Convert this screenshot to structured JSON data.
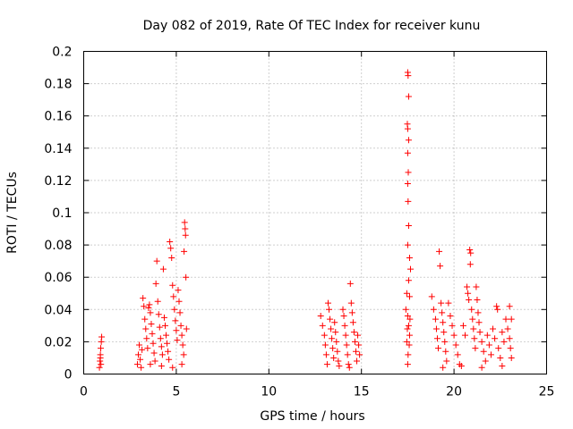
{
  "chart_data": {
    "type": "scatter",
    "title": "Day 082 of 2019, Rate Of TEC Index for receiver kunu",
    "xlabel": "GPS time / hours",
    "ylabel": "ROTI / TECUs",
    "xlim": [
      0,
      25
    ],
    "ylim": [
      0,
      0.2
    ],
    "xticks": [
      0,
      5,
      10,
      15,
      20,
      25
    ],
    "xtick_labels": [
      "0",
      "5",
      "10",
      "15",
      "20",
      "25"
    ],
    "yticks": [
      0,
      0.02,
      0.04,
      0.06,
      0.08,
      0.1,
      0.12,
      0.14,
      0.16,
      0.18,
      0.2
    ],
    "ytick_labels": [
      "0",
      "0.02",
      "0.04",
      "0.06",
      "0.08",
      "0.1",
      "0.12",
      "0.14",
      "0.16",
      "0.18",
      "0.2"
    ],
    "grid": true,
    "marker": "+",
    "series": [
      {
        "name": "ROTI",
        "color": "#ff0000",
        "points": [
          [
            0.85,
            0.004
          ],
          [
            0.88,
            0.008
          ],
          [
            0.9,
            0.012
          ],
          [
            0.92,
            0.016
          ],
          [
            0.95,
            0.02
          ],
          [
            0.97,
            0.023
          ],
          [
            0.9,
            0.01
          ],
          [
            0.93,
            0.006
          ],
          [
            2.9,
            0.006
          ],
          [
            2.95,
            0.012
          ],
          [
            3.0,
            0.018
          ],
          [
            3.05,
            0.009
          ],
          [
            3.15,
            0.015
          ],
          [
            3.2,
            0.047
          ],
          [
            3.25,
            0.042
          ],
          [
            3.3,
            0.034
          ],
          [
            3.35,
            0.028
          ],
          [
            3.4,
            0.022
          ],
          [
            3.45,
            0.016
          ],
          [
            3.5,
            0.041
          ],
          [
            3.55,
            0.043
          ],
          [
            3.6,
            0.038
          ],
          [
            3.65,
            0.031
          ],
          [
            3.7,
            0.025
          ],
          [
            3.75,
            0.019
          ],
          [
            3.8,
            0.013
          ],
          [
            3.85,
            0.008
          ],
          [
            3.9,
            0.056
          ],
          [
            3.95,
            0.07
          ],
          [
            4.0,
            0.045
          ],
          [
            4.05,
            0.037
          ],
          [
            4.1,
            0.029
          ],
          [
            4.15,
            0.022
          ],
          [
            4.2,
            0.017
          ],
          [
            4.25,
            0.012
          ],
          [
            4.3,
            0.065
          ],
          [
            4.35,
            0.035
          ],
          [
            4.4,
            0.03
          ],
          [
            4.45,
            0.024
          ],
          [
            4.5,
            0.019
          ],
          [
            4.55,
            0.014
          ],
          [
            4.6,
            0.009
          ],
          [
            4.65,
            0.082
          ],
          [
            4.7,
            0.078
          ],
          [
            4.75,
            0.072
          ],
          [
            4.8,
            0.055
          ],
          [
            4.85,
            0.048
          ],
          [
            4.9,
            0.04
          ],
          [
            4.95,
            0.033
          ],
          [
            5.0,
            0.027
          ],
          [
            5.05,
            0.021
          ],
          [
            5.1,
            0.052
          ],
          [
            5.15,
            0.045
          ],
          [
            5.2,
            0.038
          ],
          [
            5.25,
            0.03
          ],
          [
            5.3,
            0.024
          ],
          [
            5.35,
            0.018
          ],
          [
            5.4,
            0.012
          ],
          [
            5.45,
            0.094
          ],
          [
            5.48,
            0.09
          ],
          [
            5.5,
            0.086
          ],
          [
            5.42,
            0.076
          ],
          [
            5.52,
            0.06
          ],
          [
            5.55,
            0.028
          ],
          [
            3.1,
            0.004
          ],
          [
            3.6,
            0.006
          ],
          [
            4.2,
            0.005
          ],
          [
            4.8,
            0.004
          ],
          [
            5.3,
            0.006
          ],
          [
            12.8,
            0.036
          ],
          [
            12.9,
            0.03
          ],
          [
            13.0,
            0.024
          ],
          [
            13.05,
            0.018
          ],
          [
            13.1,
            0.012
          ],
          [
            13.15,
            0.006
          ],
          [
            13.2,
            0.044
          ],
          [
            13.25,
            0.04
          ],
          [
            13.3,
            0.034
          ],
          [
            13.35,
            0.028
          ],
          [
            13.4,
            0.022
          ],
          [
            13.45,
            0.016
          ],
          [
            13.5,
            0.01
          ],
          [
            13.55,
            0.032
          ],
          [
            13.6,
            0.026
          ],
          [
            13.65,
            0.02
          ],
          [
            13.7,
            0.014
          ],
          [
            13.75,
            0.008
          ],
          [
            14.0,
            0.04
          ],
          [
            14.05,
            0.036
          ],
          [
            14.1,
            0.03
          ],
          [
            14.15,
            0.024
          ],
          [
            14.2,
            0.018
          ],
          [
            14.25,
            0.012
          ],
          [
            14.3,
            0.006
          ],
          [
            14.4,
            0.056
          ],
          [
            14.45,
            0.044
          ],
          [
            14.5,
            0.038
          ],
          [
            14.55,
            0.032
          ],
          [
            14.6,
            0.026
          ],
          [
            14.65,
            0.02
          ],
          [
            14.7,
            0.014
          ],
          [
            14.75,
            0.008
          ],
          [
            14.8,
            0.024
          ],
          [
            14.85,
            0.018
          ],
          [
            14.9,
            0.012
          ],
          [
            13.8,
            0.005
          ],
          [
            14.35,
            0.004
          ],
          [
            17.4,
            0.04
          ],
          [
            17.45,
            0.05
          ],
          [
            17.5,
            0.187
          ],
          [
            17.52,
            0.185
          ],
          [
            17.55,
            0.172
          ],
          [
            17.48,
            0.155
          ],
          [
            17.5,
            0.152
          ],
          [
            17.55,
            0.145
          ],
          [
            17.5,
            0.137
          ],
          [
            17.53,
            0.125
          ],
          [
            17.5,
            0.118
          ],
          [
            17.52,
            0.107
          ],
          [
            17.55,
            0.092
          ],
          [
            17.5,
            0.08
          ],
          [
            17.6,
            0.072
          ],
          [
            17.65,
            0.065
          ],
          [
            17.55,
            0.058
          ],
          [
            17.6,
            0.048
          ],
          [
            17.5,
            0.036
          ],
          [
            17.55,
            0.03
          ],
          [
            17.6,
            0.024
          ],
          [
            17.58,
            0.018
          ],
          [
            17.52,
            0.012
          ],
          [
            17.5,
            0.006
          ],
          [
            17.45,
            0.02
          ],
          [
            17.62,
            0.034
          ],
          [
            17.48,
            0.028
          ],
          [
            18.8,
            0.048
          ],
          [
            18.9,
            0.04
          ],
          [
            19.0,
            0.034
          ],
          [
            19.05,
            0.028
          ],
          [
            19.1,
            0.022
          ],
          [
            19.15,
            0.016
          ],
          [
            19.2,
            0.076
          ],
          [
            19.25,
            0.067
          ],
          [
            19.3,
            0.044
          ],
          [
            19.35,
            0.038
          ],
          [
            19.4,
            0.032
          ],
          [
            19.45,
            0.026
          ],
          [
            19.5,
            0.02
          ],
          [
            19.55,
            0.014
          ],
          [
            19.6,
            0.008
          ],
          [
            19.7,
            0.044
          ],
          [
            19.8,
            0.036
          ],
          [
            19.9,
            0.03
          ],
          [
            20.0,
            0.024
          ],
          [
            20.1,
            0.018
          ],
          [
            20.2,
            0.012
          ],
          [
            20.3,
            0.006
          ],
          [
            20.5,
            0.03
          ],
          [
            20.6,
            0.024
          ],
          [
            20.7,
            0.054
          ],
          [
            20.75,
            0.05
          ],
          [
            20.8,
            0.046
          ],
          [
            20.85,
            0.077
          ],
          [
            20.9,
            0.075
          ],
          [
            20.88,
            0.068
          ],
          [
            20.95,
            0.04
          ],
          [
            21.0,
            0.034
          ],
          [
            21.05,
            0.028
          ],
          [
            21.1,
            0.022
          ],
          [
            21.15,
            0.016
          ],
          [
            21.2,
            0.054
          ],
          [
            21.25,
            0.046
          ],
          [
            21.3,
            0.038
          ],
          [
            21.35,
            0.032
          ],
          [
            21.4,
            0.026
          ],
          [
            21.5,
            0.02
          ],
          [
            21.6,
            0.014
          ],
          [
            21.7,
            0.008
          ],
          [
            21.8,
            0.024
          ],
          [
            21.9,
            0.018
          ],
          [
            22.0,
            0.012
          ],
          [
            22.1,
            0.028
          ],
          [
            22.2,
            0.022
          ],
          [
            22.3,
            0.042
          ],
          [
            22.35,
            0.04
          ],
          [
            22.4,
            0.016
          ],
          [
            22.5,
            0.01
          ],
          [
            22.6,
            0.026
          ],
          [
            22.7,
            0.02
          ],
          [
            22.8,
            0.034
          ],
          [
            22.9,
            0.028
          ],
          [
            23.0,
            0.022
          ],
          [
            23.05,
            0.016
          ],
          [
            23.1,
            0.01
          ],
          [
            23.0,
            0.042
          ],
          [
            23.1,
            0.034
          ],
          [
            19.4,
            0.004
          ],
          [
            20.4,
            0.005
          ],
          [
            21.5,
            0.004
          ],
          [
            22.6,
            0.005
          ]
        ]
      }
    ]
  }
}
